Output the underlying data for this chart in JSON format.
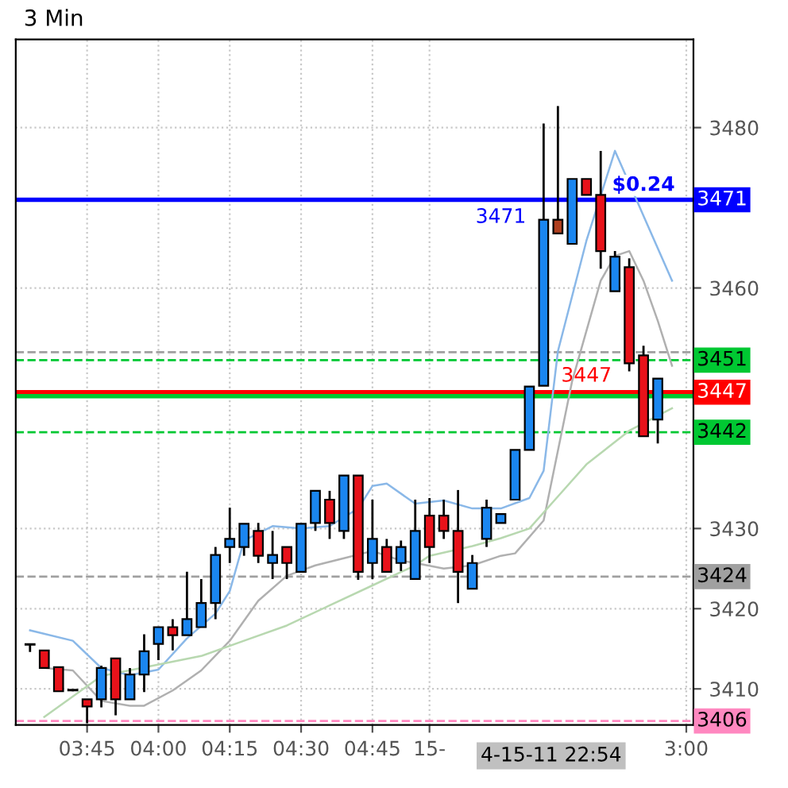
{
  "chart_data": {
    "type": "candlestick",
    "title": "3 Min",
    "categories": [
      null,
      null,
      null,
      null,
      "03:45",
      null,
      null,
      null,
      null,
      "04:00",
      null,
      null,
      null,
      null,
      "04:15",
      null,
      null,
      null,
      null,
      "04:30",
      null,
      null,
      null,
      null,
      "04:45",
      null,
      null,
      null,
      "15-",
      null,
      null,
      null,
      null,
      null,
      null,
      null,
      null,
      null,
      null,
      null,
      null,
      null,
      null,
      null,
      null,
      null,
      "3:00"
    ],
    "ohlc": [
      [
        3415.5,
        3415.6,
        3414.6,
        3415.5
      ],
      [
        3414.8,
        3414.8,
        3412.6,
        3412.6
      ],
      [
        3412.7,
        3412.7,
        3409.7,
        3409.7
      ],
      [
        3409.8,
        3409.9,
        3409.7,
        3409.8
      ],
      [
        3408.7,
        3408.7,
        3405.7,
        3407.8
      ],
      [
        3408.7,
        3412.9,
        3407.7,
        3412.6
      ],
      [
        3413.8,
        3413.8,
        3406.7,
        3408.7
      ],
      [
        3408.7,
        3412.6,
        3408.7,
        3411.8
      ],
      [
        3411.8,
        3416.8,
        3409.6,
        3414.7
      ],
      [
        3415.6,
        3417.7,
        3413.6,
        3417.7
      ],
      [
        3417.7,
        3418.7,
        3414.8,
        3416.7
      ],
      [
        3416.7,
        3424.6,
        3416.7,
        3418.7
      ],
      [
        3417.7,
        3423.7,
        3417.7,
        3420.7
      ],
      [
        3420.7,
        3427.7,
        3418.7,
        3426.7
      ],
      [
        3427.7,
        3432.6,
        3425.7,
        3428.7
      ],
      [
        3427.7,
        3430.6,
        3426.6,
        3430.6
      ],
      [
        3429.7,
        3430.7,
        3425.7,
        3426.6
      ],
      [
        3425.7,
        3429.7,
        3423.7,
        3426.7
      ],
      [
        3427.7,
        3427.7,
        3423.7,
        3425.7
      ],
      [
        3424.6,
        3430.6,
        3424.6,
        3430.6
      ],
      [
        3430.7,
        3434.7,
        3429.7,
        3434.7
      ],
      [
        3433.6,
        3434.7,
        3428.7,
        3430.7
      ],
      [
        3429.7,
        3436.6,
        3428.7,
        3436.6
      ],
      [
        3436.6,
        3436.6,
        3423.6,
        3424.6
      ],
      [
        3425.7,
        3433.6,
        3423.7,
        3428.7
      ],
      [
        3427.7,
        3428.7,
        3424.6,
        3424.6
      ],
      [
        3425.7,
        3428.5,
        3424.7,
        3427.7
      ],
      [
        3423.7,
        3433.6,
        3423.7,
        3429.7
      ],
      [
        3431.6,
        3433.8,
        3425.7,
        3427.7
      ],
      [
        3431.6,
        3433.6,
        3428.7,
        3429.7
      ],
      [
        3429.7,
        3434.8,
        3420.7,
        3424.6
      ],
      [
        3422.5,
        3426.7,
        3422.5,
        3425.7
      ],
      [
        3428.7,
        3433.6,
        3427.7,
        3432.6
      ],
      [
        3430.7,
        3431.8,
        3430.7,
        3431.8
      ],
      [
        3433.6,
        3439.8,
        3433.6,
        3439.8
      ],
      [
        3439.8,
        3447.7,
        3439.8,
        3447.7
      ],
      [
        3447.8,
        3480.5,
        3447.8,
        3468.5
      ],
      [
        3468.5,
        3482.7,
        3466.8,
        3466.8
      ],
      [
        3465.5,
        3473.6,
        3465.5,
        3473.6
      ],
      [
        3473.6,
        3473.6,
        3471.6,
        3471.6
      ],
      [
        3471.6,
        3477.1,
        3462.4,
        3464.6
      ],
      [
        3459.6,
        3464.6,
        3459.6,
        3463.9
      ],
      [
        3462.6,
        3463.7,
        3449.6,
        3450.6
      ],
      [
        3451.6,
        3452.8,
        3441.5,
        3441.5
      ],
      [
        3443.6,
        3448.7,
        3440.6,
        3448.7
      ],
      null,
      null
    ],
    "colors": [
      "#000000",
      "#e8121a",
      "#e8121a",
      "#000000",
      "#e8121a",
      "#1a86f0",
      "#e8121a",
      "#1a86f0",
      "#1a86f0",
      "#1a86f0",
      "#e8121a",
      "#1a86f0",
      "#1a86f0",
      "#1a86f0",
      "#1a86f0",
      "#1a86f0",
      "#e8121a",
      "#1a86f0",
      "#e8121a",
      "#1a86f0",
      "#1a86f0",
      "#e8121a",
      "#1a86f0",
      "#e8121a",
      "#1a86f0",
      "#e8121a",
      "#1a86f0",
      "#1a86f0",
      "#e8121a",
      "#e8121a",
      "#e8121a",
      "#1a86f0",
      "#1a86f0",
      "#1a86f0",
      "#1a86f0",
      "#1a86f0",
      "#1a86f0",
      "#b04020",
      "#1a86f0",
      "#e8121a",
      "#e8121a",
      "#1a86f0",
      "#e8121a",
      "#e8121a",
      "#1a86f0",
      null,
      null
    ],
    "series": [
      {
        "type": "line",
        "color": "#8ab8e8",
        "values": [
          3417.3,
          null,
          null,
          3416,
          null,
          3412.6,
          null,
          3411.7,
          null,
          3412.4,
          null,
          3416.3,
          null,
          3419.4,
          3422.2,
          3428.5,
          null,
          3430.3,
          null,
          3430,
          null,
          3430.3,
          null,
          3432.5,
          3435.3,
          3435.6,
          null,
          3433.1,
          null,
          3433.5,
          null,
          3432.5,
          null,
          3432.5,
          null,
          3433.8,
          3437.2,
          3452.1,
          null,
          3465.9,
          null,
          3477.1,
          null,
          3469,
          null,
          3460.9,
          null
        ]
      },
      {
        "type": "line",
        "color": "#b0b0b0",
        "values": [
          null,
          3412.6,
          null,
          3412.3,
          null,
          3408.5,
          null,
          3407.9,
          3407.9,
          null,
          3409.8,
          null,
          3412.3,
          null,
          3416,
          null,
          3421,
          null,
          3424.1,
          null,
          3425.4,
          null,
          3426.3,
          null,
          3427.2,
          null,
          3426,
          3425.7,
          null,
          3425,
          null,
          3425.4,
          null,
          3426.6,
          3426.9,
          null,
          3431,
          null,
          3448.4,
          null,
          3460.9,
          3464,
          3464.6,
          3460.9,
          3455.9,
          3450.3,
          null
        ]
      },
      {
        "type": "line",
        "color": "#b8d8b0",
        "values": [
          null,
          3406.5,
          null,
          null,
          null,
          3411.6,
          null,
          null,
          null,
          null,
          null,
          null,
          3414.1,
          null,
          null,
          3416,
          null,
          null,
          3417.9,
          null,
          null,
          3420.4,
          null,
          null,
          3422.9,
          null,
          null,
          3425.4,
          3426.6,
          null,
          null,
          3427.8,
          null,
          3428.8,
          null,
          3430,
          null,
          3434,
          null,
          3438,
          null,
          null,
          3442.2,
          null,
          null,
          3445,
          null
        ]
      }
    ],
    "ylim": [
      3405.5,
      3491
    ],
    "yticks": [
      3410,
      3420,
      3430,
      3460,
      3480
    ],
    "grid": true,
    "ref_lines": [
      {
        "axis": "y",
        "value": 3471,
        "label": "3471",
        "color": "#0000ff",
        "line_style": "solid"
      },
      {
        "axis": "y",
        "value": 3451,
        "label": "3451",
        "color": "#00c832",
        "line_style": "dashed"
      },
      {
        "axis": "y",
        "value": 3447,
        "label": "3447",
        "color": "#ff0000",
        "line_style": "solid"
      },
      {
        "axis": "y",
        "value": 3442,
        "label": "3442",
        "color": "#00c832",
        "line_style": "dashed"
      },
      {
        "axis": "y",
        "value": 3424,
        "label": "3424",
        "color": "#a0a0a0",
        "line_style": "dashed"
      },
      {
        "axis": "y",
        "value": 3406,
        "label": "3406",
        "color": "#ff88c0",
        "line_style": "dashed"
      },
      {
        "axis": "y",
        "value": 3452,
        "label": null,
        "color": "#a0a0a0",
        "line_style": "dashed"
      },
      {
        "axis": "y",
        "value": 3446.5,
        "label": null,
        "color": "#00c832",
        "line_style": "solid"
      }
    ],
    "annotations": [
      "$0.24",
      "4-15-11 22:54"
    ]
  }
}
